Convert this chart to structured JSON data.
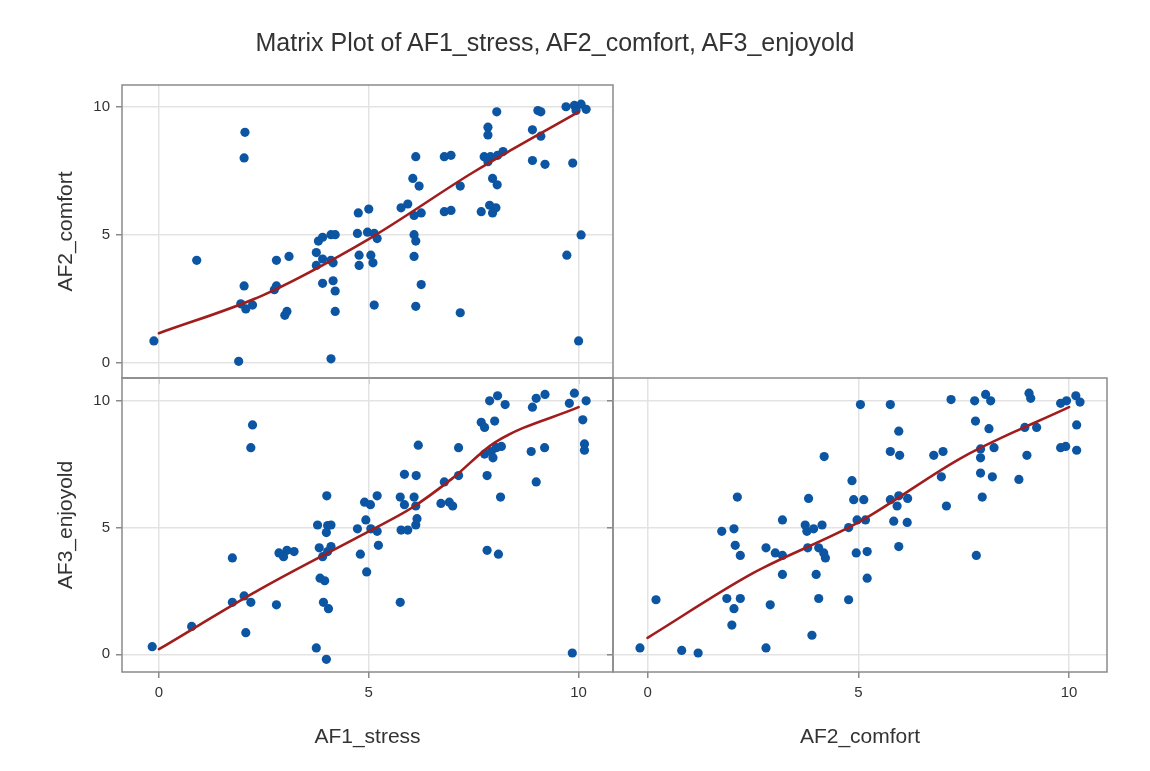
{
  "chart_data": [
    {
      "type": "scatter",
      "title": "Matrix Plot of AF1_stress, AF2_comfort, AF3_enjoyold",
      "ylabel": "AF2_comfort",
      "xlim": [
        -0.88,
        10.82
      ],
      "ylim": [
        -0.6,
        10.85
      ],
      "xticks": [
        0,
        5,
        10
      ],
      "yticks": [
        0,
        5,
        10
      ],
      "grid": true,
      "tick_labels": "y",
      "series": [
        {
          "type": "scatter",
          "color": "#0b55a3",
          "marker": "circle",
          "x": [
            -0.12,
            0.9,
            1.9,
            2.05,
            2.03,
            2.03,
            1.95,
            2.07,
            2.23,
            2.75,
            2.8,
            2.8,
            3.1,
            3.0,
            3.05,
            3.75,
            3.75,
            3.8,
            3.9,
            4.1,
            4.2,
            3.9,
            4.1,
            4.15,
            3.9,
            4.15,
            4.2,
            4.2,
            4.1,
            4.75,
            5.0,
            4.73,
            4.97,
            5.13,
            5.2,
            4.77,
            5.05,
            4.77,
            5.1,
            5.13,
            5.77,
            5.93,
            6.05,
            6.2,
            6.12,
            6.08,
            6.25,
            6.08,
            6.12,
            6.08,
            6.25,
            6.12,
            6.8,
            6.96,
            7.18,
            6.8,
            6.96,
            7.18,
            7.84,
            7.84,
            8.05,
            7.75,
            7.9,
            8.07,
            8.2,
            7.84,
            7.95,
            8.06,
            7.68,
            7.88,
            7.95,
            8.03,
            8.9,
            9.03,
            9.1,
            9.1,
            8.9,
            9.2,
            9.7,
            9.9,
            10.06,
            10.18,
            9.94,
            9.86,
            9.72,
            10.06,
            10.0
          ],
          "values": [
            0.85,
            4.0,
            0.05,
            9.0,
            8.0,
            3.0,
            2.3,
            2.1,
            2.25,
            2.85,
            3.0,
            4.0,
            4.15,
            1.85,
            2.0,
            3.8,
            4.3,
            4.75,
            4.9,
            5.0,
            5.0,
            4.05,
            4.0,
            3.9,
            3.1,
            3.2,
            2.8,
            2.0,
            0.15,
            5.85,
            6.0,
            5.05,
            5.1,
            5.05,
            4.85,
            4.2,
            4.2,
            3.8,
            3.9,
            2.25,
            6.05,
            6.2,
            7.2,
            6.9,
            8.05,
            5.75,
            5.85,
            5.0,
            4.75,
            4.15,
            3.05,
            2.2,
            8.05,
            8.1,
            6.9,
            5.9,
            5.95,
            1.95,
            9.2,
            8.9,
            9.8,
            8.05,
            8.05,
            8.1,
            8.25,
            7.85,
            7.2,
            6.95,
            5.9,
            6.15,
            5.85,
            6.05,
            9.1,
            9.85,
            9.8,
            8.85,
            7.9,
            7.75,
            10.0,
            10.05,
            10.1,
            9.9,
            9.85,
            7.8,
            4.2,
            4.99,
            0.85
          ]
        },
        {
          "type": "line",
          "color": "#a11d1d",
          "x": [
            0,
            2.5,
            5,
            7.5,
            10
          ],
          "values": [
            1.15,
            2.65,
            4.83,
            7.45,
            9.8
          ]
        }
      ]
    },
    {
      "type": "scatter",
      "xlabel": "AF1_stress",
      "ylabel": "AF3_enjoyold",
      "xlim": [
        -0.88,
        10.82
      ],
      "ylim": [
        -0.7,
        10.9
      ],
      "xticks": [
        0,
        5,
        10
      ],
      "yticks": [
        0,
        5,
        10
      ],
      "grid": true,
      "series": [
        {
          "type": "scatter",
          "color": "#0b55a3",
          "marker": "circle",
          "x": [
            -0.16,
            0.78,
            1.75,
            1.75,
            2.03,
            2.19,
            2.07,
            2.23,
            2.19,
            2.8,
            2.86,
            2.97,
            3.05,
            3.22,
            3.78,
            4.02,
            4.1,
            3.99,
            3.82,
            3.9,
            4.1,
            4.02,
            4.0,
            3.84,
            3.95,
            3.92,
            4.04,
            3.75,
            3.99,
            4.8,
            4.95,
            4.9,
            5.04,
            5.2,
            4.73,
            4.93,
            5.05,
            5.2,
            5.23,
            5.75,
            5.75,
            5.85,
            5.85,
            6.13,
            6.08,
            6.12,
            5.77,
            5.93,
            6.12,
            6.15,
            6.18,
            6.8,
            6.72,
            6.92,
            7.0,
            7.14,
            7.14,
            7.82,
            8.09,
            7.82,
            8.14,
            7.68,
            7.76,
            8.0,
            7.88,
            8.07,
            8.25,
            7.76,
            7.92,
            8.04,
            8.16,
            7.96,
            8.87,
            8.99,
            9.19,
            8.9,
            8.99,
            9.2,
            9.9,
            9.78,
            10.18,
            10.1,
            10.14,
            10.14,
            9.85
          ],
          "values": [
            0.3,
            1.1,
            3.8,
            2.05,
            2.3,
            2.05,
            0.85,
            9.05,
            8.15,
            1.95,
            4.0,
            3.85,
            4.1,
            4.05,
            5.1,
            5.08,
            5.1,
            4.8,
            4.2,
            3.85,
            4.25,
            4.05,
            6.25,
            3.0,
            2.9,
            2.05,
            1.8,
            0.25,
            -0.2,
            3.95,
            3.25,
            6.0,
            5.9,
            6.25,
            4.95,
            5.3,
            4.95,
            4.85,
            4.3,
            2.05,
            6.2,
            5.9,
            7.1,
            7.05,
            6.2,
            5.85,
            4.9,
            4.9,
            5.1,
            5.35,
            8.25,
            6.8,
            5.95,
            6.0,
            5.85,
            7.05,
            8.15,
            4.1,
            3.95,
            7.05,
            6.2,
            9.15,
            8.95,
            9.2,
            10.0,
            10.2,
            9.85,
            7.9,
            8.0,
            8.15,
            8.2,
            7.75,
            8.0,
            6.8,
            8.15,
            9.75,
            10.1,
            10.25,
            10.3,
            9.9,
            10.0,
            9.25,
            8.3,
            8.05,
            0.05
          ]
        },
        {
          "type": "line",
          "color": "#a11d1d",
          "x": [
            0,
            2.5,
            5,
            6,
            7,
            8,
            10
          ],
          "values": [
            0.2,
            2.65,
            4.85,
            5.75,
            6.95,
            8.35,
            9.75
          ]
        }
      ]
    },
    {
      "type": "scatter",
      "xlabel": "AF2_comfort",
      "xlim": [
        -0.82,
        10.9
      ],
      "ylim": [
        -0.7,
        10.9
      ],
      "xticks": [
        0,
        5,
        10
      ],
      "yticks": [
        0,
        5,
        10
      ],
      "grid": true,
      "tick_labels": "x",
      "series": [
        {
          "type": "scatter",
          "color": "#0b55a3",
          "marker": "circle",
          "x": [
            -0.18,
            0.2,
            0.81,
            1.2,
            1.76,
            2.05,
            2.13,
            2.08,
            2.2,
            1.88,
            2.2,
            2.05,
            2.0,
            2.81,
            2.91,
            2.81,
            3.03,
            3.2,
            3.2,
            3.2,
            3.74,
            3.82,
            3.78,
            3.94,
            4.14,
            3.8,
            4.06,
            4.18,
            4.22,
            4.0,
            4.06,
            3.9,
            4.19,
            4.77,
            4.77,
            4.85,
            4.89,
            5.13,
            4.97,
            5.17,
            4.95,
            5.21,
            5.21,
            5.05,
            5.76,
            5.96,
            5.76,
            5.98,
            5.76,
            5.96,
            6.17,
            5.92,
            5.84,
            6.16,
            5.96,
            6.79,
            7.01,
            6.97,
            7.09,
            7.2,
            7.76,
            8.02,
            8.14,
            7.78,
            8.1,
            7.9,
            8.22,
            7.9,
            7.9,
            8.18,
            7.94,
            7.8,
            8.81,
            9.0,
            8.95,
            9.23,
            9.05,
            9.09,
            9.8,
            9.94,
            10.16,
            10.26,
            10.18,
            9.8,
            9.92,
            10.18
          ],
          "values": [
            0.25,
            2.15,
            0.15,
            0.05,
            4.85,
            4.95,
            6.2,
            4.3,
            3.9,
            2.2,
            2.2,
            1.8,
            1.15,
            0.25,
            1.95,
            4.2,
            4.0,
            3.9,
            5.3,
            3.15,
            5.1,
            6.15,
            4.85,
            4.95,
            5.1,
            4.2,
            4.2,
            4.0,
            3.8,
            3.15,
            2.2,
            0.75,
            7.8,
            2.15,
            5.0,
            6.85,
            6.1,
            6.1,
            5.3,
            5.3,
            4.0,
            4.05,
            3.0,
            9.85,
            9.85,
            8.8,
            8.0,
            7.85,
            6.1,
            6.25,
            6.15,
            5.85,
            5.25,
            5.2,
            4.25,
            7.85,
            8.0,
            7.0,
            5.85,
            10.05,
            10.0,
            10.25,
            10.0,
            9.2,
            8.9,
            8.1,
            8.15,
            7.75,
            7.15,
            7.0,
            6.2,
            3.9,
            6.9,
            7.85,
            8.95,
            8.95,
            10.3,
            10.1,
            9.9,
            10.0,
            10.2,
            9.95,
            9.05,
            8.15,
            8.2,
            8.05
          ]
        },
        {
          "type": "line",
          "color": "#a11d1d",
          "x": [
            0,
            2.5,
            5,
            7.5,
            10
          ],
          "values": [
            0.65,
            3.2,
            5.2,
            7.8,
            9.75
          ]
        }
      ]
    }
  ]
}
